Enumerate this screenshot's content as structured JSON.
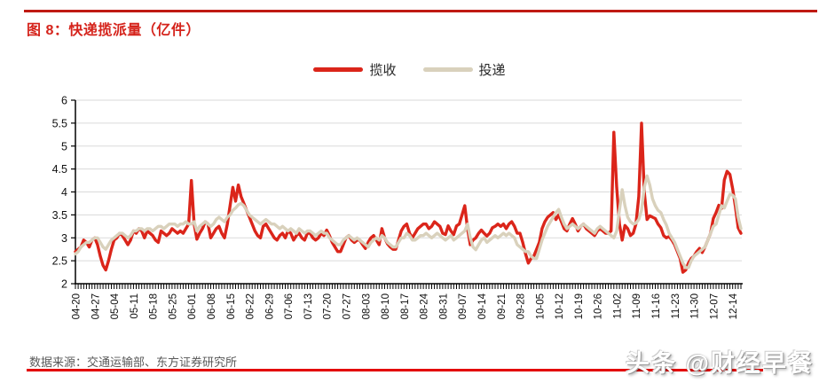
{
  "title": "图 8：快递揽派量（亿件）",
  "source": "数据来源：交通运输部、东方证券研究所",
  "watermark": "头条 @财经早餐",
  "colors": {
    "title_red": "#D5231B",
    "top_rule_red": "#BF1A12",
    "bottom_rule_red": "#E30000",
    "series_pickup_red": "#DB251A",
    "series_delivery_beige": "#D9D1BC",
    "grid": "#DADADA",
    "axis": "#000000",
    "source_gray": "#595959"
  },
  "legend": [
    {
      "label": "揽收",
      "color": "#DB251A"
    },
    {
      "label": "投递",
      "color": "#D9D1BC"
    }
  ],
  "chart_data": {
    "type": "line",
    "title": "快递揽派量（亿件）",
    "x_start": "04-20",
    "x_end": "12-17",
    "frequency": "daily",
    "grid": "horizontal",
    "legend_position": "top-center",
    "ylim": [
      2,
      6
    ],
    "y_ticks": [
      2,
      2.5,
      3,
      3.5,
      4,
      4.5,
      5,
      5.5,
      6
    ],
    "x_tick_every_days": 7,
    "x_tick_labels": [
      "04-20",
      "04-27",
      "05-04",
      "05-11",
      "05-18",
      "05-25",
      "06-01",
      "06-08",
      "06-15",
      "06-22",
      "06-29",
      "07-06",
      "07-13",
      "07-20",
      "07-27",
      "08-03",
      "08-10",
      "08-17",
      "08-24",
      "08-31",
      "09-07",
      "09-14",
      "09-21",
      "09-28",
      "10-05",
      "10-12",
      "10-19",
      "10-26",
      "11-02",
      "11-09",
      "11-16",
      "11-23",
      "11-30",
      "12-07",
      "12-14"
    ],
    "series": [
      {
        "name": "揽收",
        "color": "#DB251A",
        "values": [
          2.7,
          2.75,
          2.8,
          2.95,
          2.9,
          2.8,
          2.95,
          3.0,
          2.85,
          2.6,
          2.4,
          2.3,
          2.5,
          2.75,
          2.95,
          3.0,
          3.1,
          3.05,
          2.95,
          2.85,
          2.95,
          3.15,
          3.1,
          3.2,
          3.15,
          3.0,
          3.15,
          3.1,
          3.05,
          2.95,
          2.9,
          3.15,
          3.1,
          3.05,
          3.1,
          3.2,
          3.15,
          3.1,
          3.15,
          3.1,
          3.2,
          3.3,
          4.25,
          3.3,
          2.97,
          3.1,
          3.2,
          3.35,
          3.3,
          3.0,
          3.1,
          3.2,
          3.25,
          3.1,
          3.0,
          3.3,
          3.7,
          4.1,
          3.8,
          4.15,
          3.9,
          3.75,
          3.6,
          3.45,
          3.3,
          3.15,
          3.05,
          3.0,
          3.25,
          3.3,
          3.2,
          3.1,
          3.0,
          2.95,
          3.05,
          3.1,
          3.0,
          3.15,
          3.1,
          2.95,
          3.05,
          3.1,
          3.0,
          2.95,
          3.1,
          3.1,
          3.0,
          2.95,
          3.0,
          3.1,
          3.05,
          3.17,
          3.05,
          2.9,
          2.8,
          2.7,
          2.7,
          2.85,
          3.0,
          3.05,
          2.95,
          2.9,
          2.95,
          2.95,
          2.85,
          2.77,
          2.9,
          3.0,
          3.05,
          2.95,
          2.85,
          3.2,
          3.0,
          2.87,
          2.8,
          2.75,
          2.75,
          2.95,
          3.15,
          3.25,
          3.3,
          3.1,
          3.0,
          3.1,
          3.2,
          3.25,
          3.3,
          3.3,
          3.2,
          3.25,
          3.35,
          3.3,
          3.25,
          3.1,
          3.07,
          3.26,
          3.15,
          3.07,
          3.26,
          3.3,
          3.5,
          3.7,
          3.2,
          2.85,
          2.95,
          3.0,
          3.1,
          3.17,
          3.1,
          3.04,
          3.1,
          3.22,
          3.25,
          3.3,
          3.25,
          3.3,
          3.2,
          3.3,
          3.35,
          3.25,
          3.1,
          3.1,
          2.9,
          2.65,
          2.45,
          2.55,
          2.6,
          2.75,
          2.9,
          3.2,
          3.35,
          3.45,
          3.5,
          3.55,
          3.4,
          3.5,
          3.35,
          3.2,
          3.15,
          3.3,
          3.42,
          3.3,
          3.15,
          3.25,
          3.3,
          3.2,
          3.15,
          3.1,
          3.05,
          3.15,
          3.2,
          3.15,
          3.1,
          3.1,
          3.15,
          5.3,
          4.1,
          3.3,
          2.95,
          3.27,
          3.2,
          3.05,
          3.1,
          3.3,
          3.9,
          5.5,
          4.0,
          3.4,
          3.48,
          3.45,
          3.42,
          3.3,
          3.22,
          3.05,
          3.0,
          3.03,
          2.95,
          2.85,
          2.7,
          2.55,
          2.25,
          2.3,
          2.45,
          2.55,
          2.6,
          2.7,
          2.77,
          2.68,
          2.8,
          2.95,
          3.1,
          3.42,
          3.55,
          3.71,
          3.64,
          4.26,
          4.45,
          4.38,
          4.07,
          3.68,
          3.22,
          3.1
        ]
      },
      {
        "name": "投递",
        "color": "#D9D1BC",
        "values": [
          2.65,
          2.7,
          2.8,
          2.85,
          2.9,
          2.9,
          2.95,
          3.0,
          3.0,
          2.9,
          2.8,
          2.75,
          2.85,
          2.95,
          3.0,
          3.05,
          3.1,
          3.1,
          3.05,
          3.0,
          3.05,
          3.15,
          3.15,
          3.2,
          3.2,
          3.15,
          3.2,
          3.2,
          3.15,
          3.2,
          3.25,
          3.25,
          3.2,
          3.25,
          3.3,
          3.3,
          3.3,
          3.25,
          3.3,
          3.3,
          3.35,
          3.3,
          3.3,
          3.35,
          3.15,
          3.25,
          3.3,
          3.35,
          3.3,
          3.25,
          3.3,
          3.4,
          3.45,
          3.4,
          3.35,
          3.45,
          3.5,
          3.6,
          3.65,
          3.72,
          3.75,
          3.7,
          3.6,
          3.5,
          3.45,
          3.4,
          3.35,
          3.3,
          3.35,
          3.4,
          3.35,
          3.3,
          3.3,
          3.25,
          3.2,
          3.25,
          3.2,
          3.15,
          3.2,
          3.15,
          3.1,
          3.2,
          3.15,
          3.1,
          3.15,
          3.15,
          3.1,
          3.05,
          3.1,
          3.15,
          3.1,
          3.1,
          3.0,
          2.95,
          2.9,
          2.85,
          2.85,
          2.95,
          3.0,
          3.05,
          3.0,
          2.95,
          3.0,
          2.95,
          2.9,
          2.85,
          2.8,
          2.9,
          2.95,
          3.0,
          2.95,
          3.05,
          3.0,
          2.9,
          2.85,
          2.8,
          2.8,
          2.9,
          3.0,
          3.0,
          3.1,
          3.05,
          2.95,
          2.95,
          3.0,
          3.05,
          3.05,
          3.1,
          3.05,
          3.0,
          3.05,
          3.1,
          3.05,
          3.0,
          2.95,
          3.0,
          3.05,
          2.95,
          3.0,
          3.05,
          3.1,
          3.15,
          3.3,
          3.0,
          2.8,
          2.74,
          2.85,
          2.95,
          3.0,
          2.9,
          2.95,
          3.0,
          3.05,
          3.0,
          3.05,
          3.1,
          3.05,
          3.1,
          3.05,
          3.0,
          2.85,
          2.8,
          2.75,
          2.7,
          2.7,
          2.6,
          2.55,
          2.55,
          2.75,
          2.95,
          3.1,
          3.25,
          3.35,
          3.45,
          3.55,
          3.62,
          3.45,
          3.3,
          3.2,
          3.25,
          3.3,
          3.25,
          3.2,
          3.25,
          3.3,
          3.25,
          3.2,
          3.15,
          3.1,
          3.2,
          3.25,
          3.2,
          3.15,
          3.1,
          3.05,
          3.0,
          3.15,
          3.6,
          4.05,
          3.7,
          3.45,
          3.35,
          3.3,
          3.32,
          3.4,
          3.6,
          4.1,
          4.35,
          4.15,
          3.85,
          3.7,
          3.6,
          3.55,
          3.4,
          3.28,
          3.1,
          3.0,
          2.9,
          2.75,
          2.6,
          2.45,
          2.35,
          2.35,
          2.5,
          2.6,
          2.65,
          2.7,
          2.75,
          2.8,
          2.95,
          3.1,
          3.25,
          3.3,
          3.5,
          3.7,
          3.65,
          3.8,
          3.95,
          3.93,
          3.85,
          3.45,
          3.2
        ]
      }
    ]
  }
}
